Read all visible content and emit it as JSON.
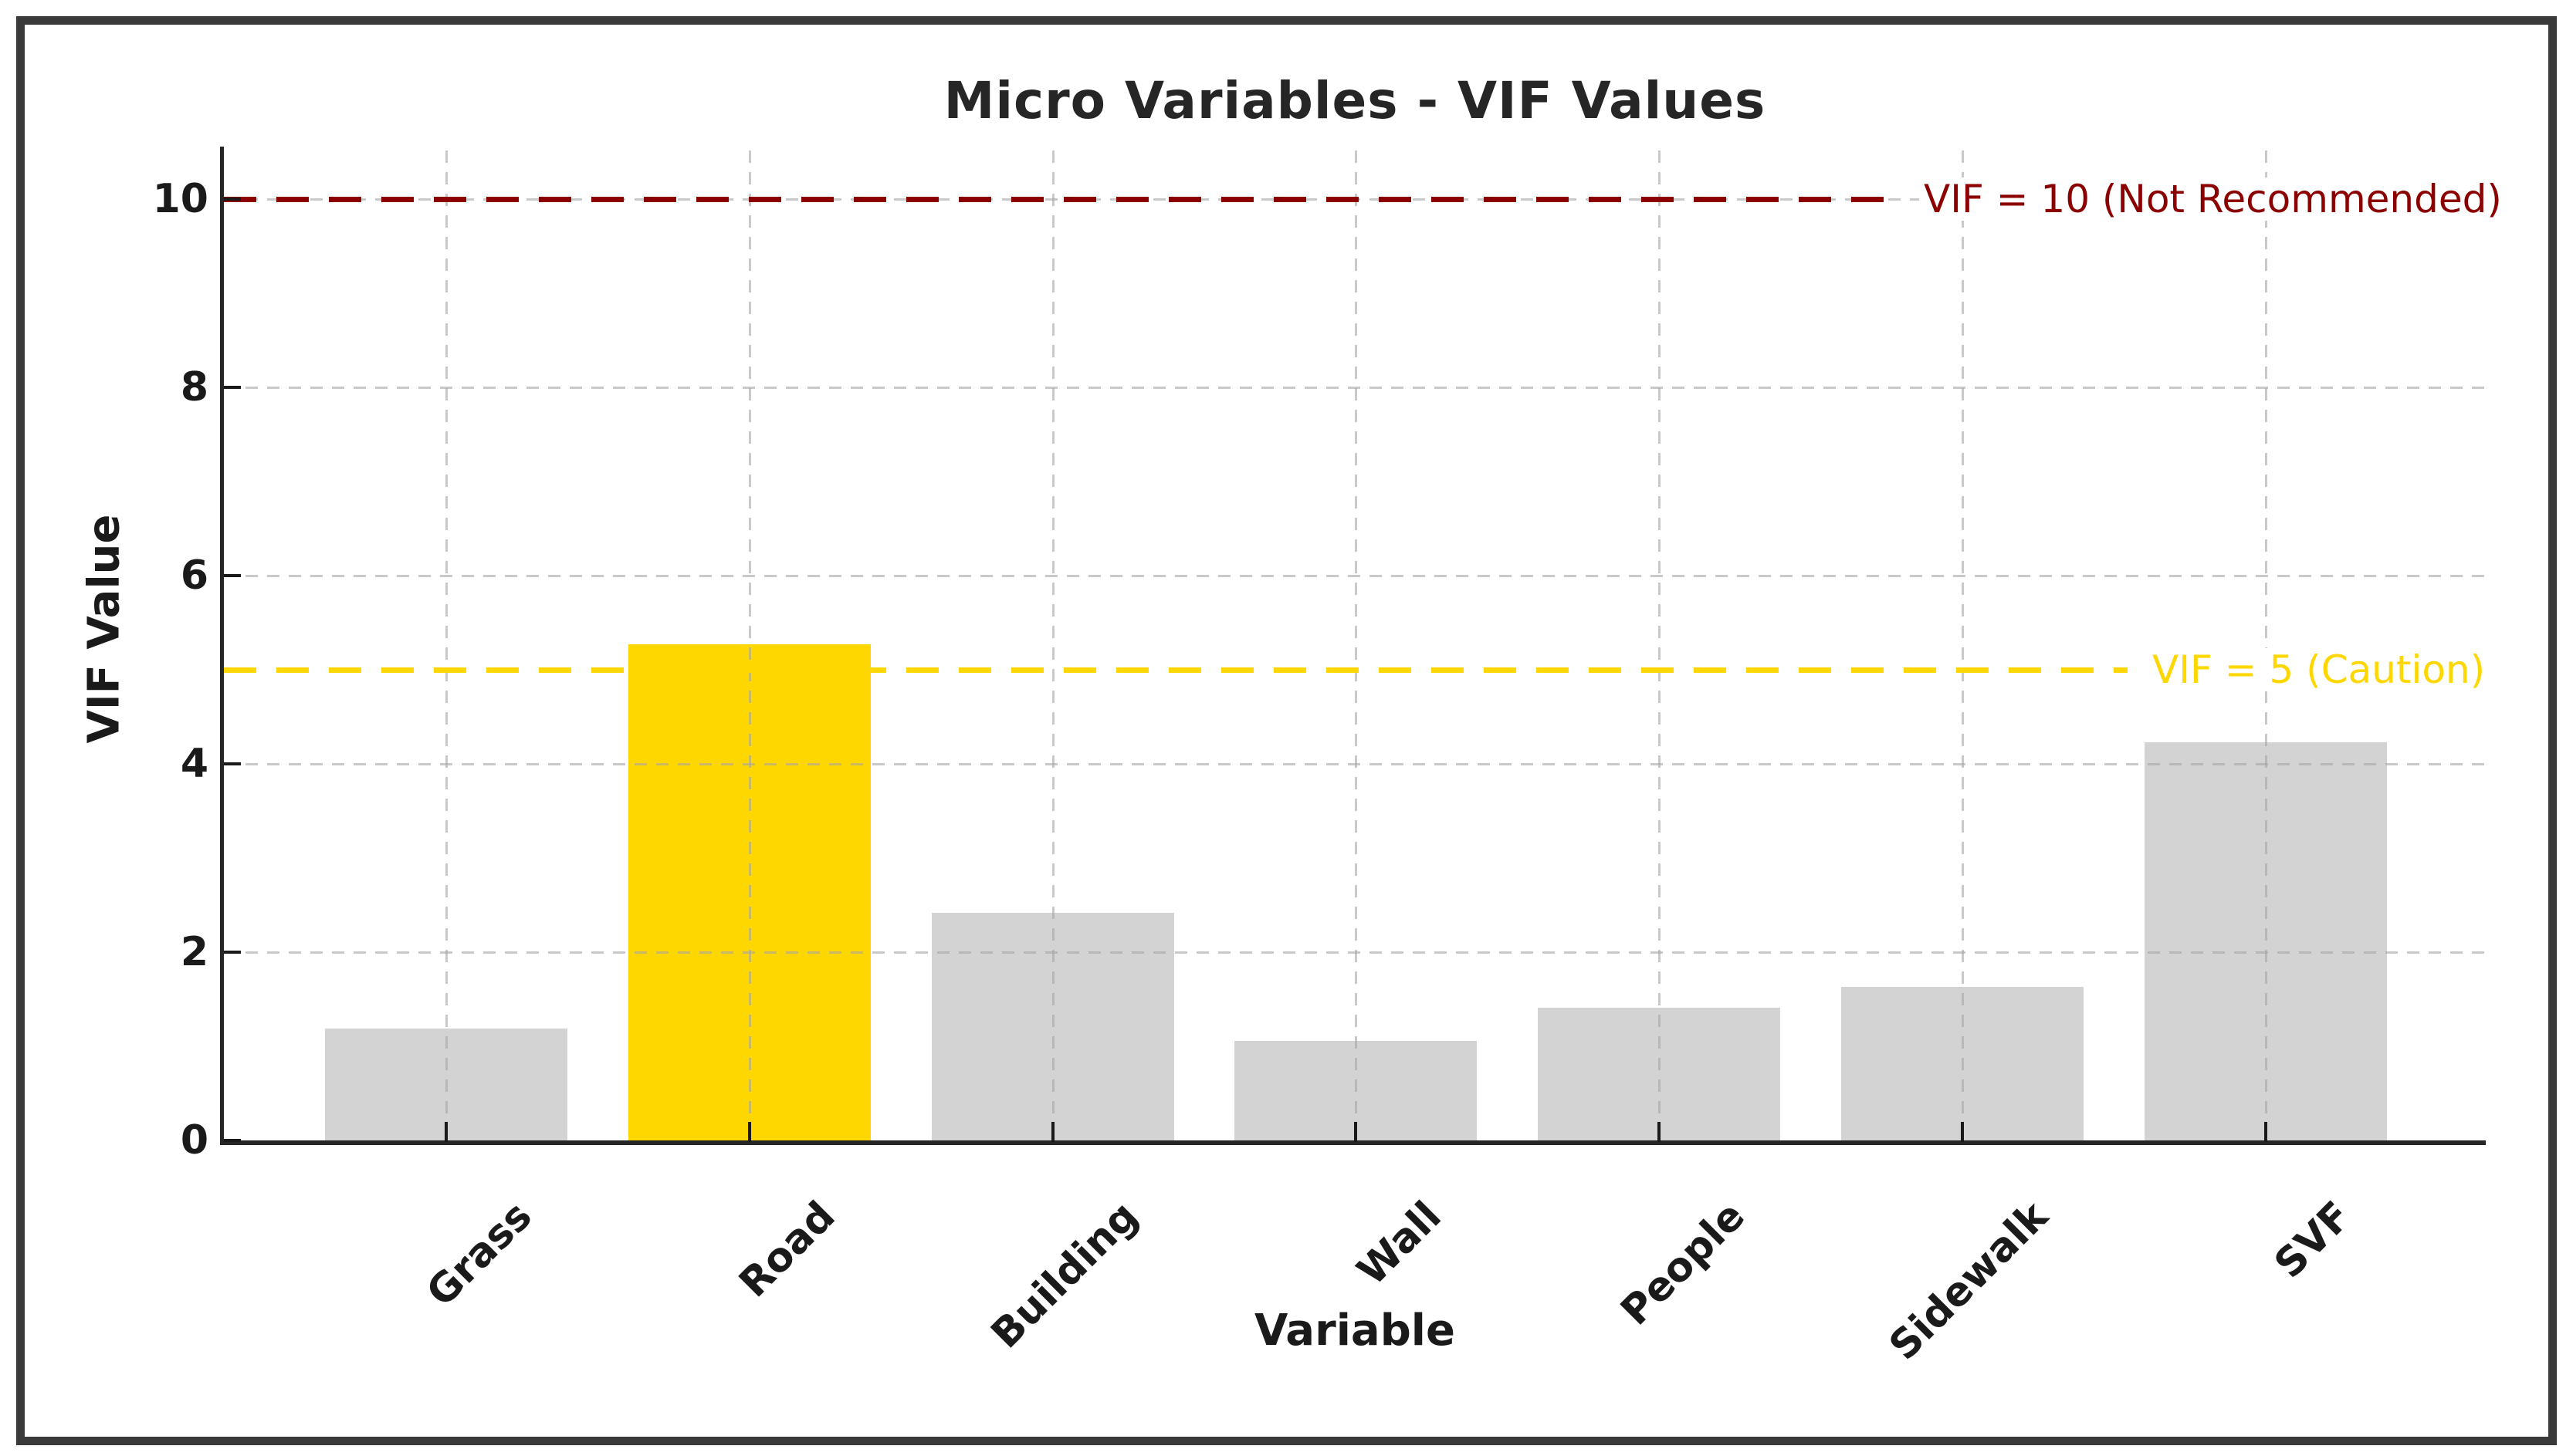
{
  "window": {
    "background": "#ffffff",
    "frame_border_color": "#3a3a3a"
  },
  "chart_data": {
    "type": "bar",
    "title": "Micro Variables - VIF Values",
    "xlabel": "Variable",
    "ylabel": "VIF Value",
    "categories": [
      "Grass",
      "Road",
      "Building",
      "Wall",
      "People",
      "Sidewalk",
      "SVF"
    ],
    "values": [
      1.19,
      5.27,
      2.42,
      1.06,
      1.41,
      1.63,
      4.23
    ],
    "bar_colors": [
      "#d3d3d3",
      "#FFD700",
      "#d3d3d3",
      "#d3d3d3",
      "#d3d3d3",
      "#d3d3d3",
      "#d3d3d3"
    ],
    "highlight_category": "Road",
    "default_bar_color": "#d3d3d3",
    "highlight_bar_color": "#FFD700",
    "yticks": [
      "0",
      "2",
      "4",
      "6",
      "8",
      "10"
    ],
    "ytick_values": [
      0,
      2,
      4,
      6,
      8,
      10
    ],
    "ylim": [
      0,
      10.5
    ],
    "grid": "dashed, light gray, horizontal and vertical",
    "x_tick_rotation_deg": 45,
    "legend_position": "none",
    "reference_lines": [
      {
        "value": 10,
        "label": "VIF = 10 (Not Recommended)",
        "color": "#8B0000",
        "style": "dashed"
      },
      {
        "value": 5,
        "label": "VIF = 5 (Caution)",
        "color": "#FFD700",
        "style": "dashed"
      }
    ]
  }
}
